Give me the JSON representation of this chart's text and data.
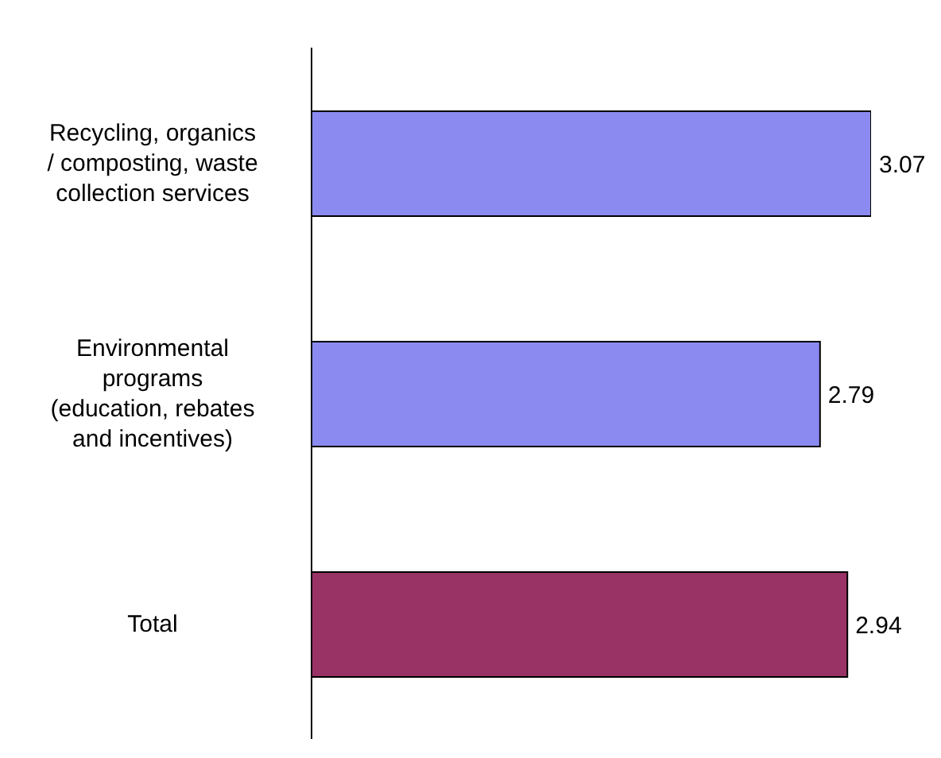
{
  "chart_data": {
    "type": "bar",
    "orientation": "horizontal",
    "categories": [
      "Recycling, organics / composting, waste collection services",
      "Environmental programs (education, rebates and incentives)",
      "Total"
    ],
    "values": [
      3.07,
      2.79,
      2.94
    ],
    "colors": [
      "#8a8af0",
      "#8a8af0",
      "#993366"
    ],
    "data_labels": true,
    "tick_labels": "y"
  }
}
